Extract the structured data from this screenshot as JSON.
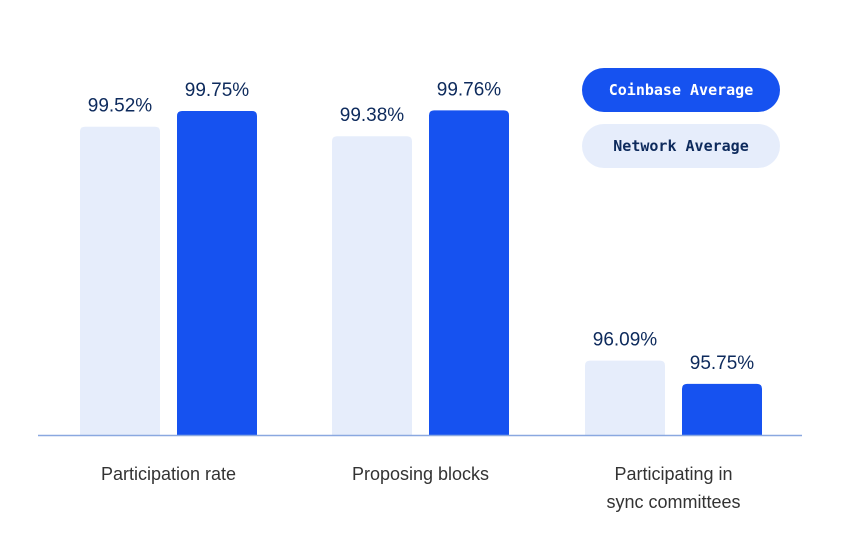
{
  "colors": {
    "coinbase": "#1652f0",
    "network": "#e6edfb",
    "text": "#0d2a5c",
    "axis": "#8aa8e0"
  },
  "chart_data": {
    "type": "bar",
    "categories": [
      [
        "Participation rate"
      ],
      [
        "Proposing blocks"
      ],
      [
        "Participating in",
        "sync committees"
      ]
    ],
    "series": [
      {
        "name": "Network Average",
        "values": [
          99.52,
          99.38,
          96.09
        ],
        "labels": [
          "99.52%",
          "99.38%",
          "96.09%"
        ]
      },
      {
        "name": "Coinbase Average",
        "values": [
          99.75,
          99.76,
          95.75
        ],
        "labels": [
          "99.75%",
          "99.76%",
          "95.75%"
        ]
      }
    ],
    "ylim": [
      95,
      100
    ],
    "grid": false,
    "legend": "top-right"
  }
}
